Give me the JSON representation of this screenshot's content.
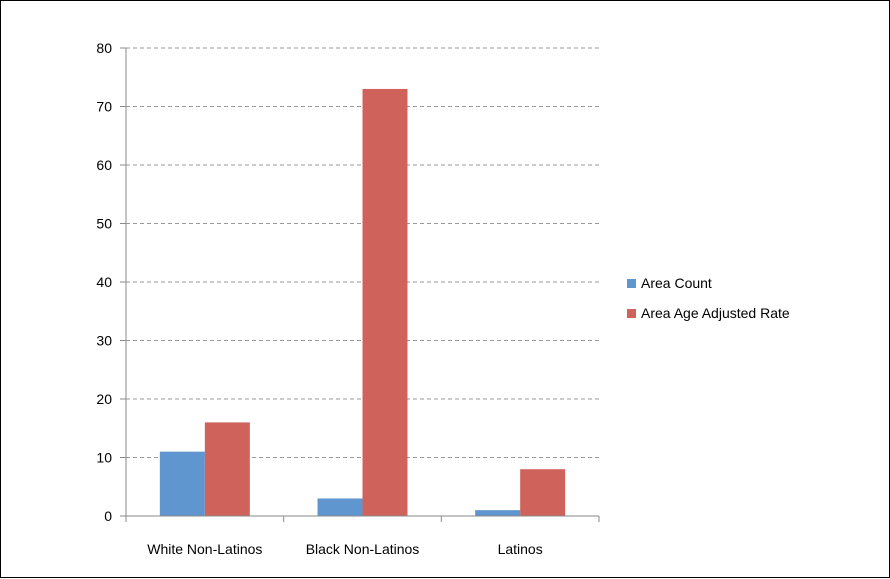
{
  "chart_data": {
    "type": "bar",
    "categories": [
      "White Non-Latinos",
      "Black Non-Latinos",
      "Latinos"
    ],
    "series": [
      {
        "name": "Area Count",
        "values": [
          11,
          3,
          1
        ],
        "color": "#6096cf"
      },
      {
        "name": "Area Age Adjusted Rate",
        "values": [
          16,
          73,
          8
        ],
        "color": "#d0625c"
      }
    ],
    "y_ticks": [
      "0",
      "10",
      "20",
      "30",
      "40",
      "50",
      "60",
      "70",
      "80"
    ],
    "ylim": [
      0,
      80
    ],
    "grid": "horizontal dashed",
    "legend_position": "right"
  }
}
